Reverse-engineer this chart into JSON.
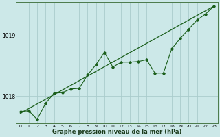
{
  "title": "Graphe pression niveau de la mer (hPa)",
  "background_color": "#cce8e8",
  "grid_color": "#aacccc",
  "line_color": "#1a5e1a",
  "x_ticks": [
    0,
    1,
    2,
    3,
    4,
    5,
    6,
    7,
    8,
    9,
    10,
    11,
    12,
    13,
    14,
    15,
    16,
    17,
    18,
    19,
    20,
    21,
    22,
    23
  ],
  "ylim": [
    1017.55,
    1019.55
  ],
  "yticks": [
    1018,
    1019
  ],
  "series1_x": [
    0,
    1,
    2,
    3,
    4,
    5,
    6,
    7,
    8,
    9,
    10,
    11,
    12,
    13,
    14,
    15,
    16,
    17,
    18,
    19,
    20,
    21,
    22,
    23
  ],
  "series1_y": [
    1017.75,
    1017.76,
    1017.62,
    1017.88,
    1018.05,
    1018.06,
    1018.12,
    1018.13,
    1018.35,
    1018.52,
    1018.72,
    1018.48,
    1018.56,
    1018.56,
    1018.57,
    1018.6,
    1018.38,
    1018.38,
    1018.78,
    1018.95,
    1019.1,
    1019.25,
    1019.35,
    1019.48
  ],
  "trend_x": [
    0,
    23
  ],
  "trend_y": [
    1017.72,
    1019.48
  ]
}
